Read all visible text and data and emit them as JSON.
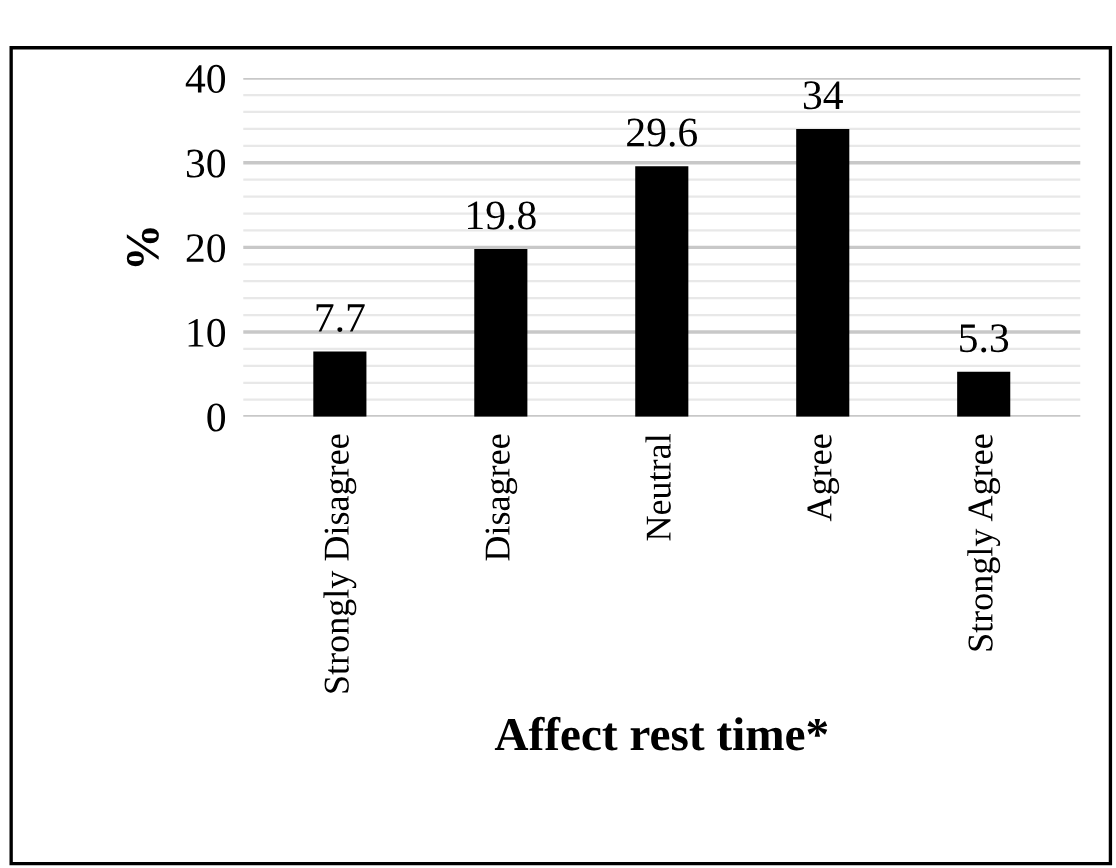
{
  "chart_data": {
    "type": "bar",
    "xlabel": "Affect rest time*",
    "ylabel": "%",
    "categories": [
      "Strongly Disagree",
      "Disagree",
      "Neutral",
      "Agree",
      "Strongly Agree"
    ],
    "values": [
      7.7,
      19.8,
      29.6,
      34,
      5.3
    ],
    "color": "#000000",
    "ylim": [
      0,
      40
    ],
    "yticks": [
      0,
      {
        "value": 2,
        "label": null
      },
      {
        "value": 4,
        "label": null
      },
      {
        "value": 6,
        "label": null
      },
      {
        "value": 8,
        "label": null
      },
      10,
      {
        "value": 12,
        "label": null
      },
      {
        "value": 14,
        "label": null
      },
      {
        "value": 16,
        "label": null
      },
      {
        "value": 18,
        "label": null
      },
      20,
      {
        "value": 22,
        "label": null
      },
      {
        "value": 24,
        "label": null
      },
      {
        "value": 26,
        "label": null
      },
      {
        "value": 28,
        "label": null
      },
      30,
      {
        "value": 32,
        "label": null
      },
      {
        "value": 34,
        "label": null
      },
      {
        "value": 36,
        "label": null
      },
      {
        "value": 38,
        "label": null
      },
      40
    ],
    "grid": "y",
    "data_labels": true
  }
}
